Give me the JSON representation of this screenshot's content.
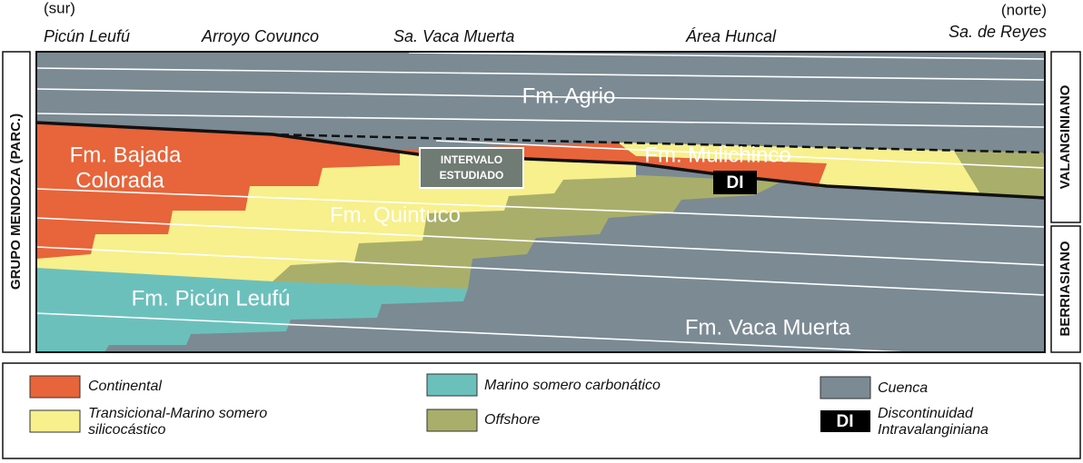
{
  "header": {
    "south": "(sur)",
    "north": "(norte)",
    "locations": [
      "Picún Leufú",
      "Arroyo Covunco",
      "Sa. Vaca Muerta",
      "Área Huncal",
      "Sa. de Reyes"
    ]
  },
  "side": {
    "group": "GRUPO MENDOZA (PARC.)",
    "stages": [
      "VALANGINIANO",
      "BERRIASIANO"
    ]
  },
  "formations": {
    "agrio": "Fm. Agrio",
    "bajada": [
      "Fm. Bajada",
      "Colorada"
    ],
    "mulichinco": "Fm. Mulichinco",
    "quintuco": "Fm. Quintuco",
    "picun": "Fm. Picún Leufú",
    "vaca": "Fm. Vaca Muerta"
  },
  "markers": {
    "interval": [
      "INTERVALO",
      "ESTUDIADO"
    ],
    "di": "DI"
  },
  "legend": {
    "items": [
      {
        "lines": [
          "Continental"
        ]
      },
      {
        "lines": [
          "Transicional-Marino somero",
          "silicocástico"
        ]
      },
      {
        "lines": [
          "Marino somero carbonático"
        ]
      },
      {
        "lines": [
          "Offshore"
        ]
      },
      {
        "lines": [
          "Cuenca"
        ]
      },
      {
        "lines": [
          "Discontinuidad",
          "Intravalanginiana"
        ]
      }
    ]
  }
}
